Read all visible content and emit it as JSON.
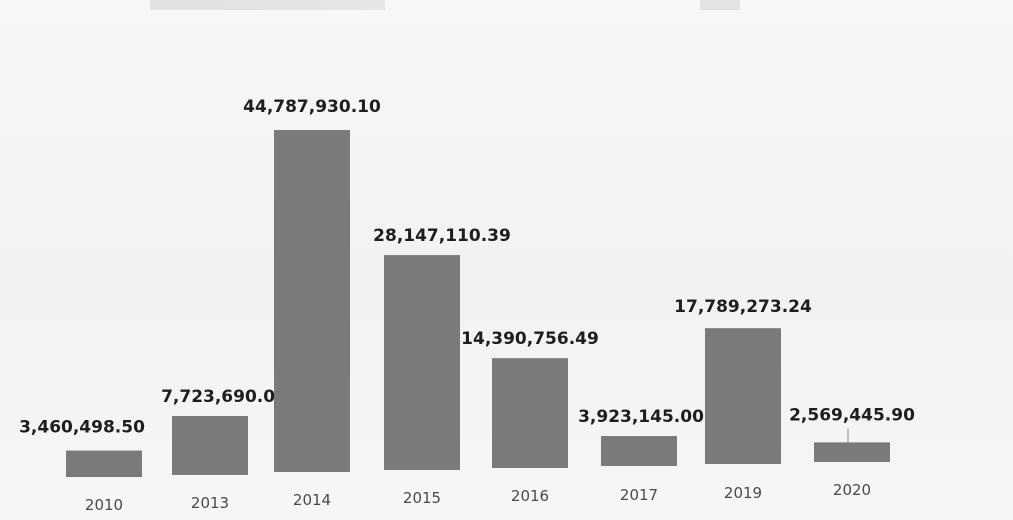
{
  "chart_data": {
    "type": "bar",
    "title": "",
    "xlabel": "",
    "ylabel": "",
    "categories": [
      "2010",
      "2013",
      "2014",
      "2015",
      "2016",
      "2017",
      "2019",
      "2020"
    ],
    "values": [
      3460498.5,
      7723690.0,
      44787930.1,
      28147110.39,
      14390756.49,
      3923145.0,
      17789273.24,
      2569445.9
    ],
    "data_labels": [
      "3,460,498.50",
      "7,723,690.00",
      "44,787,930.10",
      "28,147,110.39",
      "14,390,756.49",
      "3,923,145.00",
      "17,789,273.24",
      "2,569,445.90"
    ],
    "ylim": [
      0,
      44787930.1
    ],
    "grid": false,
    "legend": "none",
    "bar_color": "#7a7a7a"
  }
}
